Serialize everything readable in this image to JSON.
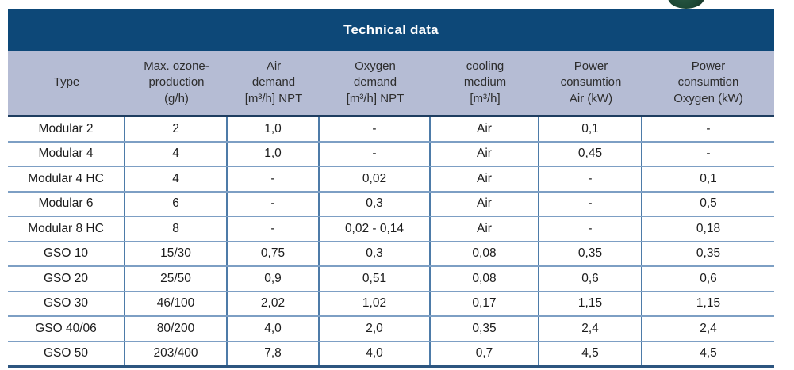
{
  "title": "Technical data",
  "table": {
    "columns": [
      {
        "id": "type",
        "label": "Type"
      },
      {
        "id": "max-ozone-production",
        "label": "Max. ozone-\nproduction\n(g/h)"
      },
      {
        "id": "air-demand",
        "label": "Air\ndemand\n[m³/h] NPT"
      },
      {
        "id": "oxygen-demand",
        "label": "Oxygen\ndemand\n[m³/h] NPT"
      },
      {
        "id": "cooling-medium",
        "label": "cooling\nmedium\n[m³/h]"
      },
      {
        "id": "power-consumtion-air",
        "label": "Power\nconsumtion\nAir (kW)"
      },
      {
        "id": "power-consumtion-oxygen",
        "label": "Power\nconsumtion\nOxygen (kW)"
      }
    ],
    "rows": [
      [
        "Modular 2",
        "2",
        "1,0",
        "-",
        "Air",
        "0,1",
        "-"
      ],
      [
        "Modular 4",
        "4",
        "1,0",
        "-",
        "Air",
        "0,45",
        "-"
      ],
      [
        "Modular 4 HC",
        "4",
        "-",
        "0,02",
        "Air",
        "-",
        "0,1"
      ],
      [
        "Modular 6",
        "6",
        "-",
        "0,3",
        "Air",
        "-",
        "0,5"
      ],
      [
        "Modular 8 HC",
        "8",
        "-",
        "0,02 - 0,14",
        "Air",
        "-",
        "0,18"
      ],
      [
        "GSO 10",
        "15/30",
        "0,75",
        "0,3",
        "0,08",
        "0,35",
        "0,35"
      ],
      [
        "GSO 20",
        "25/50",
        "0,9",
        "0,51",
        "0,08",
        "0,6",
        "0,6"
      ],
      [
        "GSO 30",
        "46/100",
        "2,02",
        "1,02",
        "0,17",
        "1,15",
        "1,15"
      ],
      [
        "GSO 40/06",
        "80/200",
        "4,0",
        "2,0",
        "0,35",
        "2,4",
        "2,4"
      ],
      [
        "GSO 50",
        "203/400",
        "7,8",
        "4,0",
        "0,7",
        "4,5",
        "4,5"
      ]
    ]
  },
  "colors": {
    "title_band_bg": "#0d4878",
    "title_text": "#ffffff",
    "header_row_bg": "#b5bcd4",
    "header_text": "#2d2d2d",
    "body_text": "#1c1c1c",
    "row_separator": "#7d9fc4",
    "column_separator": "#4d7ba8",
    "header_bottom_line": "#1e3d60",
    "table_bottom_line": "#2d5680",
    "green_sphere": "#1d4936"
  }
}
